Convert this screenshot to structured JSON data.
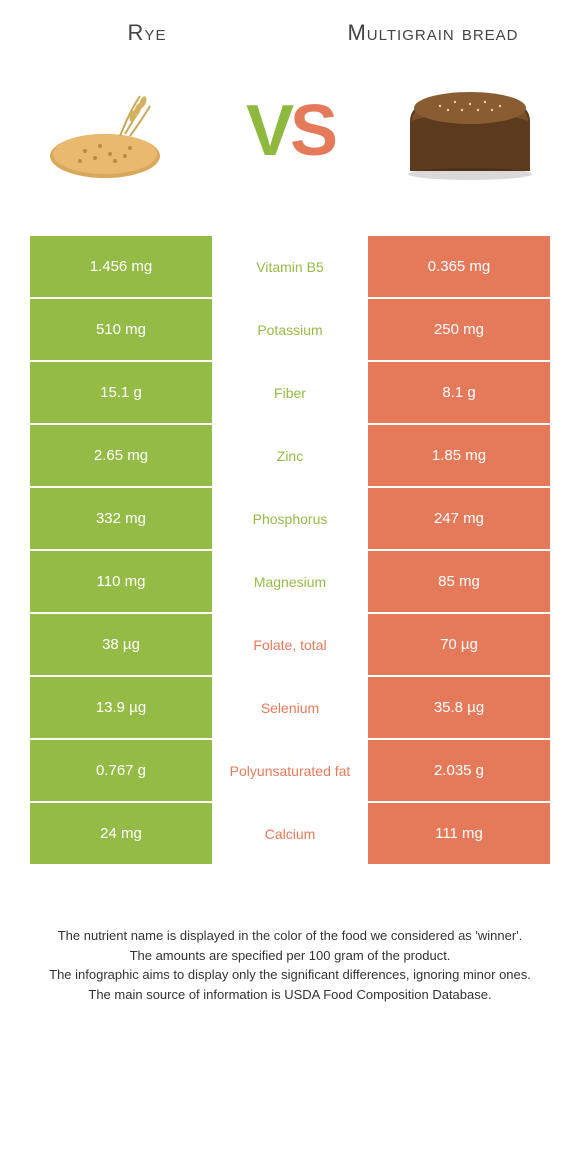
{
  "colors": {
    "left": "#94bb46",
    "right": "#e57a5a",
    "mid_bg": "#ffffff",
    "text_white": "#ffffff"
  },
  "header": {
    "left_title": "Rye",
    "right_title": "Multigrain bread"
  },
  "vs": {
    "v": "V",
    "s": "S"
  },
  "rows": [
    {
      "left": "1.456 mg",
      "label": "Vitamin B5",
      "right": "0.365 mg",
      "winner": "left"
    },
    {
      "left": "510 mg",
      "label": "Potassium",
      "right": "250 mg",
      "winner": "left"
    },
    {
      "left": "15.1 g",
      "label": "Fiber",
      "right": "8.1 g",
      "winner": "left"
    },
    {
      "left": "2.65 mg",
      "label": "Zinc",
      "right": "1.85 mg",
      "winner": "left"
    },
    {
      "left": "332 mg",
      "label": "Phosphorus",
      "right": "247 mg",
      "winner": "left"
    },
    {
      "left": "110 mg",
      "label": "Magnesium",
      "right": "85 mg",
      "winner": "left"
    },
    {
      "left": "38 µg",
      "label": "Folate, total",
      "right": "70 µg",
      "winner": "right"
    },
    {
      "left": "13.9 µg",
      "label": "Selenium",
      "right": "35.8 µg",
      "winner": "right"
    },
    {
      "left": "0.767 g",
      "label": "Polyunsaturated fat",
      "right": "2.035 g",
      "winner": "right"
    },
    {
      "left": "24 mg",
      "label": "Calcium",
      "right": "111 mg",
      "winner": "right"
    }
  ],
  "footnotes": [
    "The nutrient name is displayed in the color of the food we considered as 'winner'.",
    "The amounts are specified per 100 gram of the product.",
    "The infographic aims to display only the significant differences, ignoring minor ones.",
    "The main source of information is USDA Food Composition Database."
  ]
}
